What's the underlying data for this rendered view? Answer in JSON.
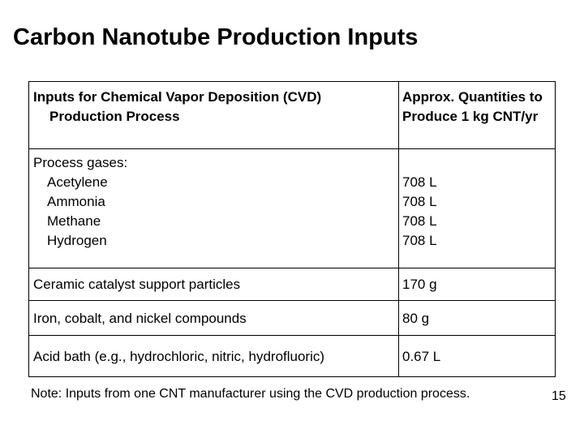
{
  "title": "Carbon Nanotube Production Inputs",
  "table": {
    "header": [
      "Inputs for Chemical Vapor Deposition (CVD) Production Process",
      "Approx. Quantities to Produce 1 kg CNT/yr"
    ],
    "gases": {
      "label": "Process gases:",
      "items": [
        {
          "name": "Acetylene",
          "quantity": "708 L"
        },
        {
          "name": "Ammonia",
          "quantity": "708 L"
        },
        {
          "name": "Methane",
          "quantity": "708 L"
        },
        {
          "name": "Hydrogen",
          "quantity": "708 L"
        }
      ]
    },
    "rows": [
      [
        "Ceramic catalyst support particles",
        "170 g"
      ],
      [
        "Iron, cobalt, and nickel compounds",
        "80 g"
      ],
      [
        "Acid bath (e.g., hydrochloric, nitric, hydrofluoric)",
        "0.67 L"
      ]
    ]
  },
  "note": "Note: Inputs from one CNT manufacturer using the CVD production process.",
  "page_number": "15"
}
